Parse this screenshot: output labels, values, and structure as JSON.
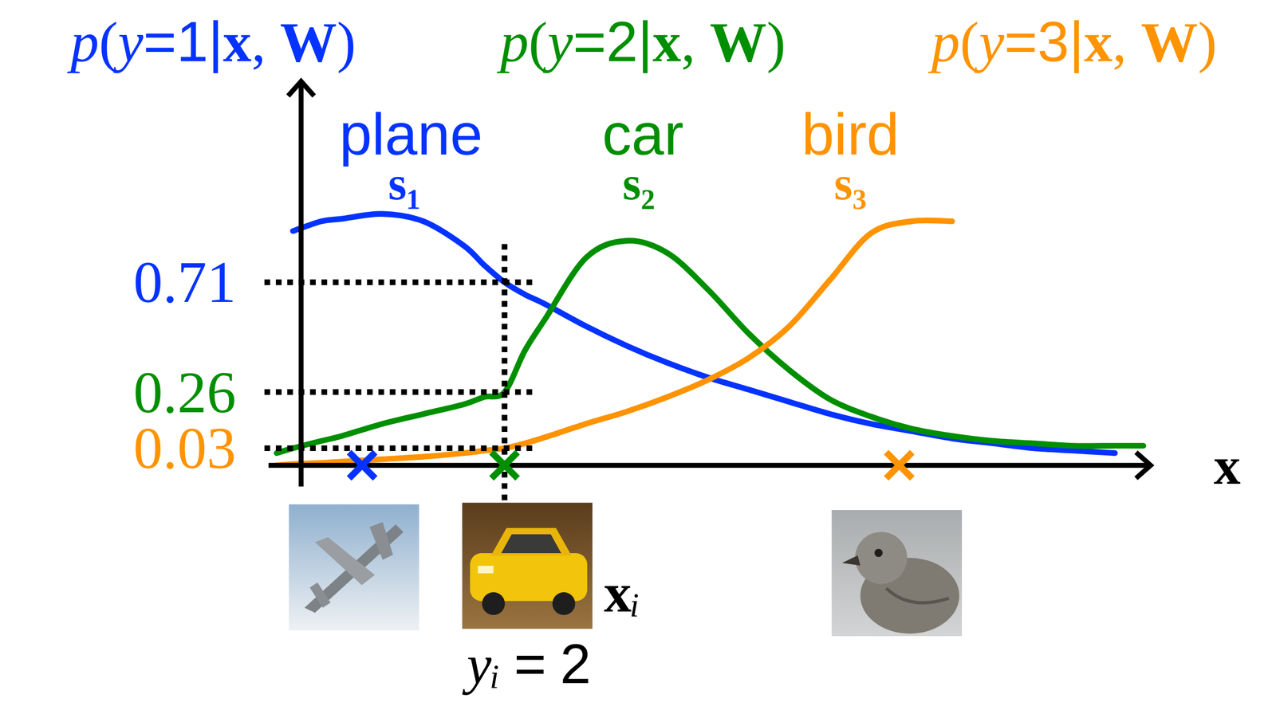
{
  "chart_data": {
    "type": "line",
    "x_label": "x",
    "x": [
      -0.3,
      -0.1,
      0.25,
      0.5,
      1.0,
      1.5,
      2.0,
      2.25,
      2.5,
      2.75,
      3.0,
      3.5,
      4.0,
      4.5,
      5.0,
      5.5,
      6.0,
      6.5,
      7.0,
      7.5,
      8.0,
      8.5,
      9.0,
      9.5,
      10.0,
      10.35
    ],
    "xlim": [
      -0.4,
      10.4
    ],
    "ylim": [
      -0.04,
      1.5
    ],
    "yticks": [
      0.03,
      0.26,
      0.71
    ],
    "tick_labels": "y",
    "series": [
      {
        "name": "plane",
        "label": "p(y=1|x, W)",
        "score": "s₁",
        "color": "#0433ff",
        "sample_x": 0.75,
        "values": [
          null,
          0.92,
          0.96,
          0.97,
          0.99,
          0.96,
          0.86,
          0.78,
          0.71,
          0.66,
          0.62,
          0.53,
          0.45,
          0.38,
          0.32,
          0.27,
          0.22,
          0.17,
          0.13,
          0.1,
          0.07,
          0.05,
          0.03,
          0.02,
          0.01,
          null
        ]
      },
      {
        "name": "car",
        "label": "p(y=2|x, W)",
        "score": "s₂",
        "color": "#008f00",
        "sample_x": 2.5,
        "values": [
          0.01,
          0.03,
          0.06,
          0.08,
          0.13,
          0.17,
          0.21,
          0.24,
          0.26,
          0.43,
          0.56,
          0.81,
          0.88,
          0.83,
          0.68,
          0.5,
          0.35,
          0.23,
          0.16,
          0.11,
          0.08,
          0.06,
          0.05,
          0.04,
          0.04,
          0.04
        ]
      },
      {
        "name": "bird",
        "label": "p(y=3|x, W)",
        "score": "s₃",
        "color": "#ff9300",
        "sample_x": 7.35,
        "values": [
          -0.04,
          -0.035,
          -0.03,
          -0.025,
          -0.015,
          -0.005,
          0.01,
          0.02,
          0.03,
          0.05,
          0.075,
          0.13,
          0.18,
          0.24,
          0.31,
          0.4,
          0.53,
          0.72,
          0.91,
          0.96,
          0.96,
          null,
          null,
          null,
          null,
          null
        ]
      }
    ],
    "query": {
      "x": 2.5,
      "label": "xᵢ",
      "class_label": "yᵢ = 2"
    }
  }
}
